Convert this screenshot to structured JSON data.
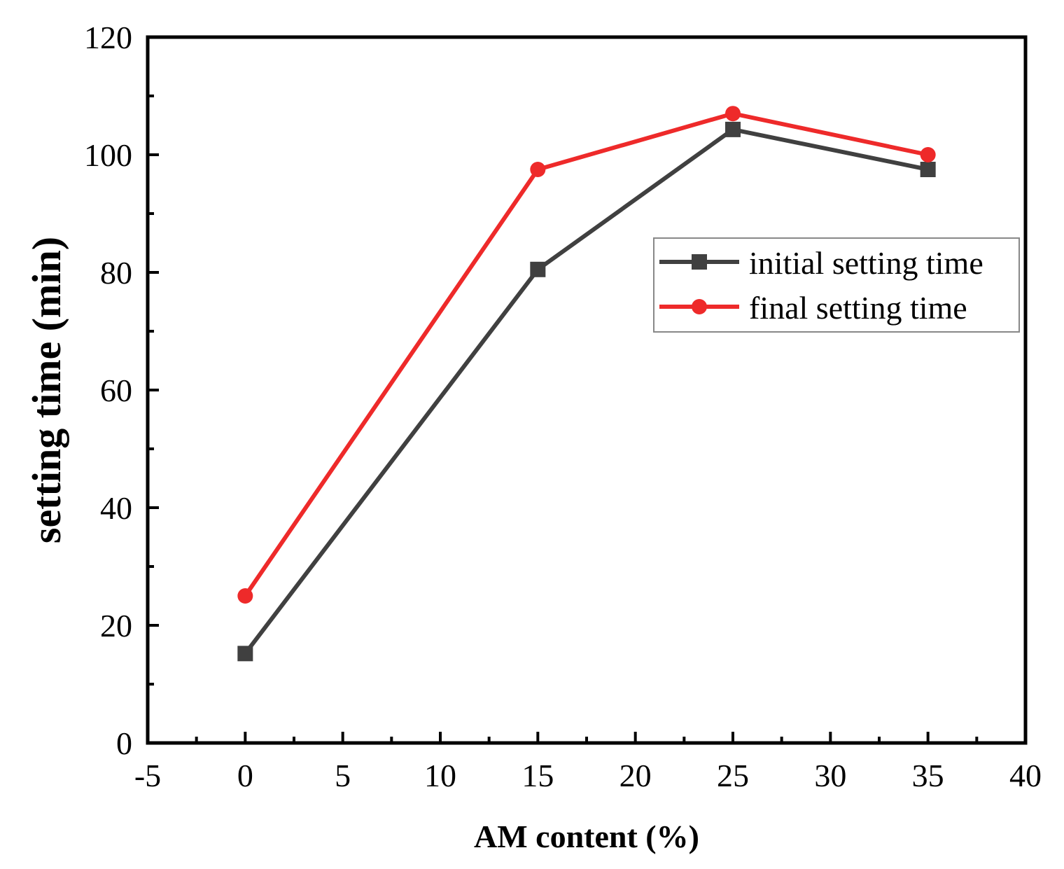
{
  "chart_data": {
    "type": "line",
    "title": "",
    "xlabel": "AM content (%)",
    "ylabel": "setting time (min)",
    "xlim": [
      -5,
      40
    ],
    "ylim": [
      0,
      120
    ],
    "x_ticks": [
      -5,
      0,
      5,
      10,
      15,
      20,
      25,
      30,
      35,
      40
    ],
    "y_ticks": [
      0,
      20,
      40,
      60,
      80,
      100,
      120
    ],
    "x": [
      0,
      15,
      25,
      35
    ],
    "series": [
      {
        "name": "initial setting time",
        "values": [
          15.2,
          80.5,
          104.3,
          97.5
        ],
        "color": "#404040",
        "marker": "square"
      },
      {
        "name": "final setting time",
        "values": [
          25,
          97.5,
          107,
          100
        ],
        "color": "#ee2a2a",
        "marker": "circle"
      }
    ],
    "legend_position": "upper-right",
    "grid": false
  }
}
